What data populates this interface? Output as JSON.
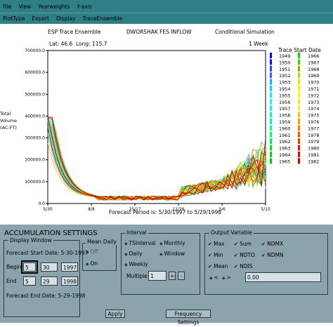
{
  "menu": [
    "File",
    "View",
    "Yearweights",
    "Y-axis"
  ],
  "toolbar": [
    "PlotType",
    "Export",
    "Display",
    "TraceEnsemble"
  ],
  "chart": {
    "title_left": "ESP Trace Ensemble",
    "title_center": "DWORSHAK FES INFLOW",
    "title_right": "Conditional Simulation",
    "lat": "Lat: 46.6",
    "long": "Long: 115.7",
    "period": "1 Week",
    "legend_title": "Trace Start Date",
    "ylabel_lines": [
      "Total",
      "Volume",
      "(AC-FT)"
    ],
    "yticks": [
      "700000.0",
      "600000.0",
      "500000.0",
      "400000.0",
      "300000.0",
      "200000.0",
      "100000.0",
      "0.0"
    ],
    "xticks": [
      "5/30",
      "8/8",
      "10/17",
      "12/26",
      "3/6",
      "5/15"
    ],
    "footer": "Forecast Period is: 5/30/1997 to 5/29/1998"
  },
  "chart_data": {
    "type": "line",
    "ylim": [
      0,
      700000
    ],
    "legend_years_left": [
      "1949",
      "1950",
      "1951",
      "1952",
      "1953",
      "1954",
      "1955",
      "1956",
      "1957",
      "1958",
      "1959",
      "1960",
      "1961",
      "1962",
      "1963",
      "1964",
      "1965"
    ],
    "legend_years_right": [
      "1966",
      "1967",
      "1968",
      "1969",
      "1970",
      "1971",
      "1972",
      "1973",
      "1974",
      "1975",
      "1976",
      "1977",
      "1978",
      "1979",
      "1980",
      "1981",
      "1982"
    ],
    "legend_colors_left": [
      "#0000c8",
      "#1010d8",
      "#2a40e8",
      "#4060f0",
      "#2aa0f0",
      "#30c0f0",
      "#40d8f0",
      "#40e0f0",
      "#30e8e0",
      "#30e0c8",
      "#30e0b0",
      "#30e890",
      "#30e070",
      "#20d860",
      "#20d040",
      "#20c830",
      "#10c020"
    ],
    "legend_colors_right": [
      "#20c020",
      "#50c818",
      "#a0a020",
      "#c0d020",
      "#e0e020",
      "#f0f020",
      "#f0f040",
      "#f0e840",
      "#f8e060",
      "#f0c020",
      "#e8a010",
      "#e88010",
      "#e06010",
      "#d84010",
      "#d02010",
      "#c81010",
      "#b80000"
    ]
  },
  "settings": {
    "heading": "ACCUMULATION SETTINGS",
    "display_window": "Display Window",
    "forecast_start": "Forecast Start Date: 5-30-1997",
    "begin_label": "Begin",
    "end_label": "End",
    "begin_vals": [
      "5",
      "30",
      "1997"
    ],
    "end_vals": [
      "5",
      "29",
      "1998"
    ],
    "forecast_end": "Forecast End Date: 5-29-1998",
    "mean_daily": "Mean Daily",
    "mean_off": "Off",
    "mean_on": "On",
    "interval": "Interval",
    "int_opts": [
      "TSInterval",
      "Monthly",
      "Daily",
      "Window",
      "Weekly"
    ],
    "multiple": "Multiple",
    "multiple_val": "1",
    "output_variable": "Output Variable",
    "out_opts": [
      "Max",
      "Sum",
      "NDMX",
      "Min",
      "NDTO",
      "NDMN",
      "Mean",
      "NDIS"
    ],
    "lt_sym": "<",
    "gt_sym": ">",
    "threshold": "0.00",
    "apply": "Apply",
    "freq": "Frequency Settings"
  }
}
